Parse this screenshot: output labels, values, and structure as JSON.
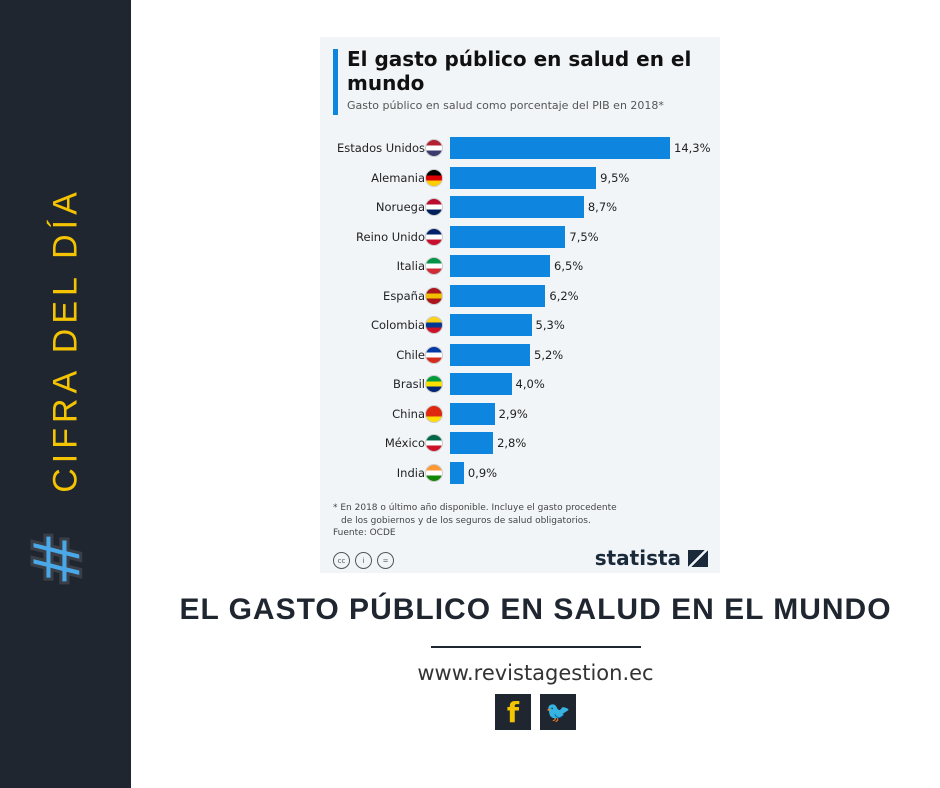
{
  "sidebar": {
    "title": "CIFRA DEL DÍA",
    "hashtag": "#"
  },
  "headline": "EL GASTO PÚBLICO EN SALUD EN EL MUNDO",
  "website": "www.revistagestion.ec",
  "social": {
    "facebook": "f",
    "twitter": "🐦"
  },
  "chart_data": {
    "type": "bar",
    "orientation": "horizontal",
    "title": "El gasto público en salud en el mundo",
    "subtitle": "Gasto público en salud como porcentaje del PIB en 2018*",
    "categories": [
      "Estados Unidos",
      "Alemania",
      "Noruega",
      "Reino Unido",
      "Italia",
      "España",
      "Colombia",
      "Chile",
      "Brasil",
      "China",
      "México",
      "India"
    ],
    "values": [
      14.3,
      9.5,
      8.7,
      7.5,
      6.5,
      6.2,
      5.3,
      5.2,
      4.0,
      2.9,
      2.8,
      0.9
    ],
    "value_labels": [
      "14,3%",
      "9,5%",
      "8,7%",
      "7,5%",
      "6,5%",
      "6,2%",
      "5,3%",
      "5,2%",
      "4,0%",
      "2,9%",
      "2,8%",
      "0,9%"
    ],
    "flag_colors": [
      [
        "#b22234",
        "#fff",
        "#3c3b6e"
      ],
      [
        "#000",
        "#dd0000",
        "#ffce00"
      ],
      [
        "#ba0c2f",
        "#fff",
        "#00205b"
      ],
      [
        "#012169",
        "#fff",
        "#c8102e"
      ],
      [
        "#009246",
        "#fff",
        "#ce2b37"
      ],
      [
        "#aa151b",
        "#f1bf00",
        "#aa151b"
      ],
      [
        "#fcd116",
        "#003893",
        "#ce1126"
      ],
      [
        "#0039a6",
        "#fff",
        "#d52b1e"
      ],
      [
        "#009c3b",
        "#ffdf00",
        "#002776"
      ],
      [
        "#de2910",
        "#de2910",
        "#ffde00"
      ],
      [
        "#006847",
        "#fff",
        "#ce1126"
      ],
      [
        "#ff9933",
        "#fff",
        "#138808"
      ]
    ],
    "bar_color": "#0e86e0",
    "xlim": [
      0,
      14.3
    ],
    "footnote": "* En 2018 o último año disponible. Incluye el gasto procedente",
    "footnote2": "de los gobiernos y de los seguros de salud obligatorios.",
    "source": "Fuente: OCDE",
    "license_icons": [
      "cc",
      "i",
      "="
    ],
    "brand": "statista"
  }
}
